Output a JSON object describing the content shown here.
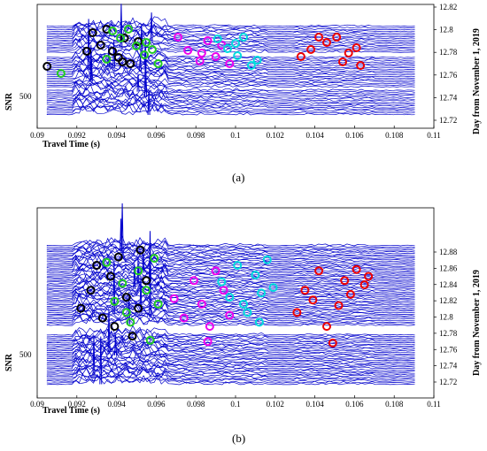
{
  "chart_data": [
    {
      "type": "scatter",
      "panel_label": "(a)",
      "xlabel": "Travel Time (s)",
      "ylabel": "SNR",
      "right_ylabel": "Day from November 1, 2019",
      "xlim": [
        0.09,
        0.11
      ],
      "x_ticks": [
        "0.09",
        "0.092",
        "0.094",
        "0.096",
        "0.098",
        "0.1",
        "0.102",
        "0.104",
        "0.106",
        "0.108",
        "0.11"
      ],
      "left_ticks": [
        "500"
      ],
      "right_lim": [
        12.72,
        12.82
      ],
      "right_ticks": [
        "12.82",
        "12.8",
        "12.78",
        "12.76",
        "12.74",
        "12.72"
      ],
      "trace_color": "#0000cc",
      "series": [
        {
          "color": "#000000",
          "points": [
            [
              0.0905,
              0.55
            ],
            [
              0.0925,
              0.72
            ],
            [
              0.0928,
              0.93
            ],
            [
              0.0932,
              0.79
            ],
            [
              0.0935,
              0.97
            ],
            [
              0.0938,
              0.72
            ],
            [
              0.0941,
              0.65
            ],
            [
              0.0944,
              0.87
            ],
            [
              0.0947,
              0.58
            ],
            [
              0.0951,
              0.83
            ],
            [
              0.0943,
              0.6
            ]
          ]
        },
        {
          "color": "#22cc22",
          "points": [
            [
              0.0912,
              0.47
            ],
            [
              0.0935,
              0.63
            ],
            [
              0.0938,
              0.95
            ],
            [
              0.0942,
              0.87
            ],
            [
              0.0946,
              0.97
            ],
            [
              0.095,
              0.78
            ],
            [
              0.0954,
              0.68
            ],
            [
              0.0958,
              0.74
            ],
            [
              0.0961,
              0.58
            ],
            [
              0.0955,
              0.82
            ]
          ]
        },
        {
          "color": "#ee00ee",
          "points": [
            [
              0.0971,
              0.88
            ],
            [
              0.0976,
              0.73
            ],
            [
              0.0982,
              0.61
            ],
            [
              0.0986,
              0.84
            ],
            [
              0.099,
              0.66
            ],
            [
              0.0993,
              0.79
            ],
            [
              0.0997,
              0.58
            ],
            [
              0.0983,
              0.7
            ]
          ]
        },
        {
          "color": "#00dddd",
          "points": [
            [
              0.0991,
              0.86
            ],
            [
              0.0996,
              0.75
            ],
            [
              0.1001,
              0.67
            ],
            [
              0.1004,
              0.88
            ],
            [
              0.1008,
              0.56
            ],
            [
              0.1011,
              0.62
            ],
            [
              0.1,
              0.81
            ]
          ]
        },
        {
          "color": "#ee0000",
          "points": [
            [
              0.1033,
              0.66
            ],
            [
              0.1038,
              0.74
            ],
            [
              0.1042,
              0.88
            ],
            [
              0.1046,
              0.82
            ],
            [
              0.1051,
              0.88
            ],
            [
              0.1054,
              0.6
            ],
            [
              0.1057,
              0.7
            ],
            [
              0.1061,
              0.76
            ],
            [
              0.1063,
              0.56
            ]
          ]
        }
      ]
    },
    {
      "type": "scatter",
      "panel_label": "(b)",
      "xlabel": "Travel Time (s)",
      "ylabel": "SNR",
      "right_ylabel": "Day from November 1, 2019",
      "xlim": [
        0.09,
        0.11
      ],
      "x_ticks": [
        "0.09",
        "0.092",
        "0.094",
        "0.096",
        "0.098",
        "0.1",
        "0.102",
        "0.104",
        "0.106",
        "0.108",
        "0.11"
      ],
      "left_ticks": [
        "500"
      ],
      "right_lim": [
        12.72,
        12.89
      ],
      "right_ticks": [
        "12.88",
        "12.86",
        "12.84",
        "12.82",
        "12.8",
        "12.78",
        "12.76",
        "12.74",
        "12.72"
      ],
      "trace_color": "#0000cc",
      "series": [
        {
          "color": "#000000",
          "points": [
            [
              0.0922,
              0.55
            ],
            [
              0.0927,
              0.68
            ],
            [
              0.093,
              0.86
            ],
            [
              0.0933,
              0.48
            ],
            [
              0.0937,
              0.78
            ],
            [
              0.0941,
              0.92
            ],
            [
              0.0945,
              0.63
            ],
            [
              0.0948,
              0.35
            ],
            [
              0.0952,
              0.97
            ],
            [
              0.0955,
              0.75
            ],
            [
              0.0939,
              0.42
            ],
            [
              0.0951,
              0.55
            ]
          ]
        },
        {
          "color": "#22cc22",
          "points": [
            [
              0.0935,
              0.88
            ],
            [
              0.0939,
              0.6
            ],
            [
              0.0943,
              0.73
            ],
            [
              0.0947,
              0.45
            ],
            [
              0.0951,
              0.82
            ],
            [
              0.0955,
              0.68
            ],
            [
              0.0959,
              0.91
            ],
            [
              0.0961,
              0.58
            ],
            [
              0.0957,
              0.32
            ],
            [
              0.0945,
              0.52
            ]
          ]
        },
        {
          "color": "#ee00ee",
          "points": [
            [
              0.0969,
              0.62
            ],
            [
              0.0974,
              0.48
            ],
            [
              0.0979,
              0.75
            ],
            [
              0.0983,
              0.58
            ],
            [
              0.0987,
              0.42
            ],
            [
              0.099,
              0.82
            ],
            [
              0.0994,
              0.68
            ],
            [
              0.0986,
              0.31
            ],
            [
              0.0997,
              0.5
            ]
          ]
        },
        {
          "color": "#00dddd",
          "points": [
            [
              0.0993,
              0.74
            ],
            [
              0.0997,
              0.63
            ],
            [
              0.1001,
              0.86
            ],
            [
              0.1006,
              0.52
            ],
            [
              0.101,
              0.79
            ],
            [
              0.1013,
              0.66
            ],
            [
              0.1016,
              0.9
            ],
            [
              0.1019,
              0.7
            ],
            [
              0.1004,
              0.58
            ],
            [
              0.1012,
              0.45
            ]
          ]
        },
        {
          "color": "#ee0000",
          "points": [
            [
              0.1031,
              0.52
            ],
            [
              0.1035,
              0.68
            ],
            [
              0.1039,
              0.61
            ],
            [
              0.1042,
              0.82
            ],
            [
              0.1046,
              0.42
            ],
            [
              0.1049,
              0.3
            ],
            [
              0.1052,
              0.57
            ],
            [
              0.1055,
              0.75
            ],
            [
              0.1058,
              0.65
            ],
            [
              0.1061,
              0.83
            ],
            [
              0.1065,
              0.72
            ],
            [
              0.1067,
              0.78
            ]
          ]
        }
      ]
    }
  ]
}
